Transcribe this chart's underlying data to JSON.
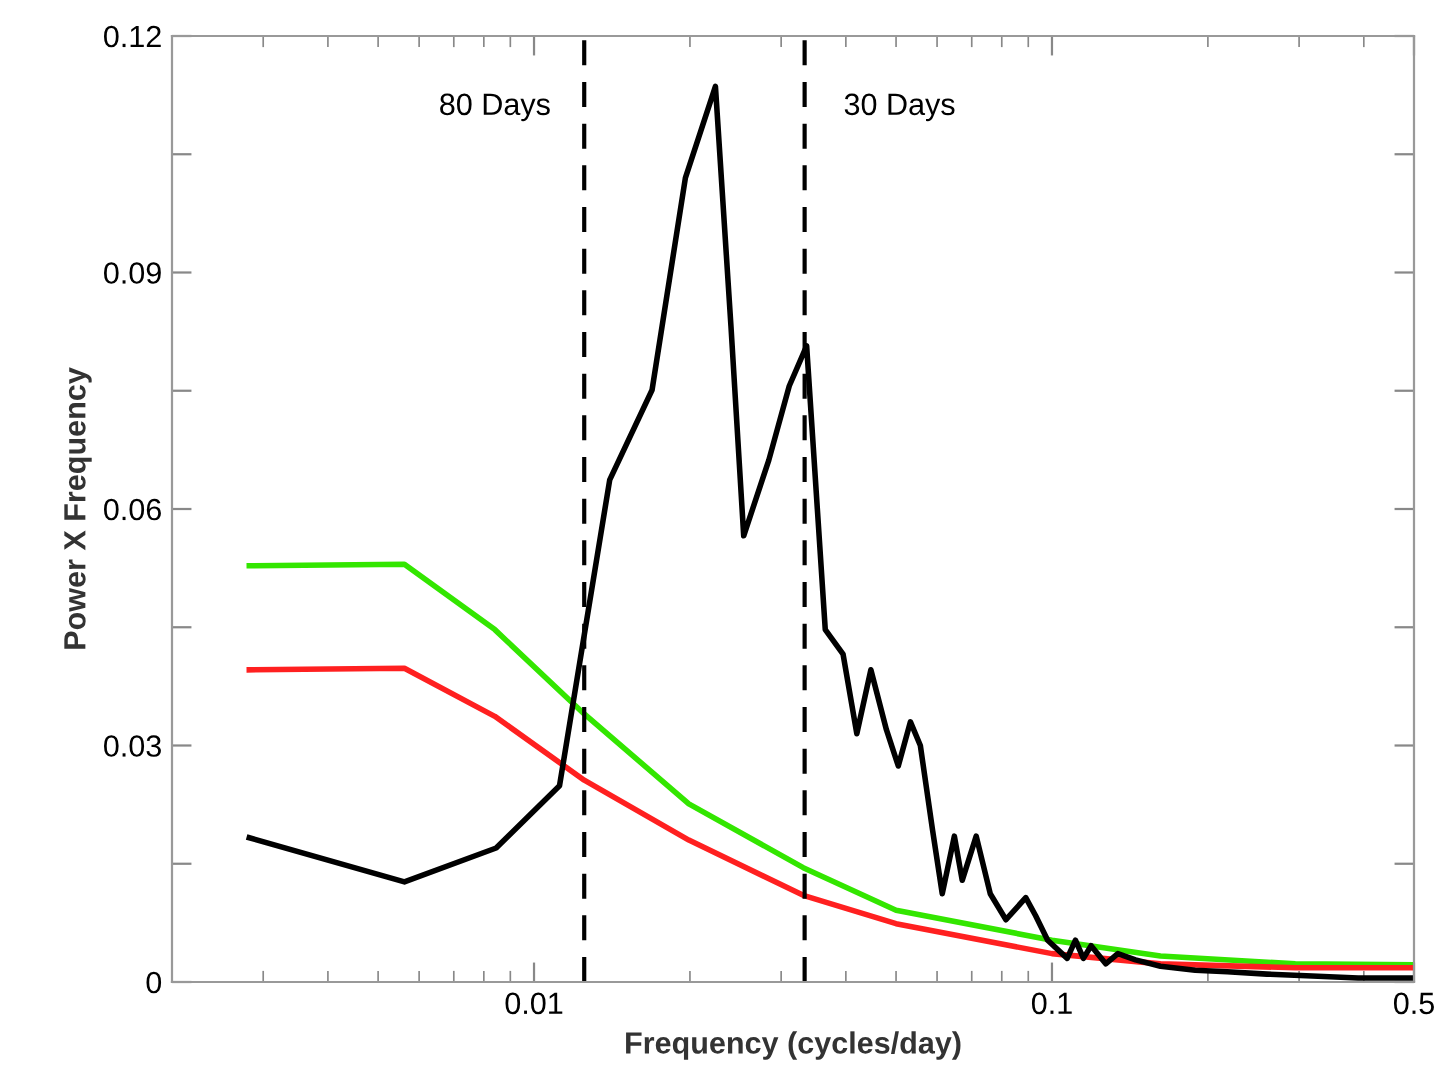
{
  "chart_data": {
    "type": "line",
    "xlabel": "Frequency (cycles/day)",
    "ylabel": "Power X Frequency",
    "log": "x",
    "xlim": [
      0.002,
      0.5
    ],
    "xticks": [
      0.01,
      0.1,
      0.5
    ],
    "ylim": [
      0,
      0.12
    ],
    "yticks": [
      0,
      {
        "value": 0.015,
        "label": null
      },
      0.03,
      {
        "value": 0.045,
        "label": null
      },
      0.06,
      {
        "value": 0.075,
        "label": null
      },
      0.09,
      {
        "value": 0.105,
        "label": null
      },
      0.12
    ],
    "grid": false,
    "legend": false,
    "line_style": "solid",
    "marker": "none",
    "series": [
      {
        "color": "#33e600",
        "x": [
          0.00282,
          0.00562,
          0.0084,
          0.0125,
          0.0199,
          0.0331,
          0.05,
          0.1,
          0.162,
          0.295,
          0.5
        ],
        "values": [
          0.0528,
          0.053,
          0.0447,
          0.034,
          0.0226,
          0.0145,
          0.0091,
          0.0053,
          0.0033,
          0.0023,
          0.0022
        ]
      },
      {
        "color": "#ff2020",
        "x": [
          0.00282,
          0.00562,
          0.0084,
          0.0125,
          0.0199,
          0.0331,
          0.05,
          0.1,
          0.162,
          0.295,
          0.5
        ],
        "values": [
          0.0396,
          0.0398,
          0.0337,
          0.0256,
          0.018,
          0.011,
          0.0074,
          0.0036,
          0.0023,
          0.0018,
          0.0018
        ]
      },
      {
        "color": "#000000",
        "x": [
          0.00282,
          0.00562,
          0.00845,
          0.0112,
          0.014,
          0.0169,
          0.0196,
          0.0224,
          0.024,
          0.0254,
          0.0284,
          0.0311,
          0.0336,
          0.0365,
          0.0395,
          0.042,
          0.0447,
          0.0479,
          0.0505,
          0.0533,
          0.0557,
          0.0588,
          0.0614,
          0.0648,
          0.0671,
          0.0714,
          0.076,
          0.0815,
          0.089,
          0.093,
          0.0981,
          0.107,
          0.111,
          0.115,
          0.119,
          0.127,
          0.134,
          0.145,
          0.162,
          0.189,
          0.218,
          0.26,
          0.31,
          0.39,
          0.5
        ],
        "values": [
          0.0183,
          0.0127,
          0.017,
          0.0249,
          0.0637,
          0.0751,
          0.102,
          0.1136,
          0.0832,
          0.0566,
          0.0662,
          0.0756,
          0.0807,
          0.0447,
          0.0416,
          0.0315,
          0.0396,
          0.032,
          0.0274,
          0.033,
          0.03,
          0.0193,
          0.0112,
          0.0185,
          0.0129,
          0.0185,
          0.0112,
          0.0079,
          0.0107,
          0.0084,
          0.0053,
          0.003,
          0.0053,
          0.003,
          0.0046,
          0.0023,
          0.0036,
          0.0028,
          0.002,
          0.0015,
          0.0013,
          0.001,
          0.0008,
          0.0005,
          0.0005
        ]
      }
    ],
    "ref_lines": [
      {
        "axis": "x",
        "value": 0.0125,
        "label": "80 Days",
        "color": "#000000",
        "line_style": "dashed"
      },
      {
        "axis": "x",
        "value": 0.0333,
        "label": "30 Days",
        "color": "#000000",
        "line_style": "dashed"
      }
    ]
  }
}
